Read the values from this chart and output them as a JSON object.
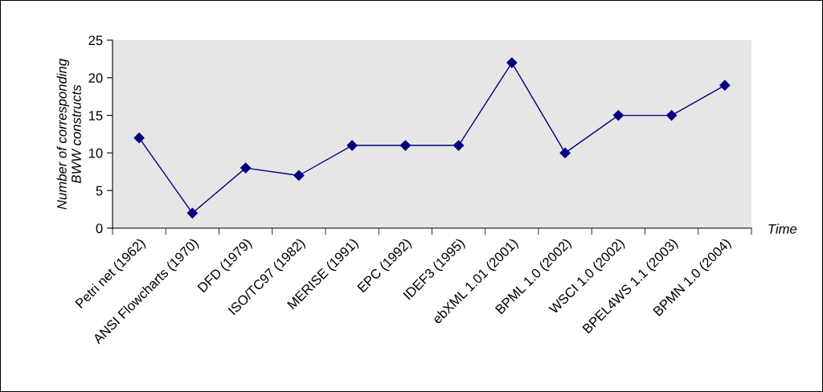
{
  "chart_data": {
    "type": "line",
    "categories": [
      "Petri net (1962)",
      "ANSI Flowcharts (1970)",
      "DFD (1979)",
      "ISO/TC97 (1982)",
      "MERISE (1991)",
      "EPC (1992)",
      "IDEF3 (1995)",
      "ebXML 1.01 (2001)",
      "BPML 1.0 (2002)",
      "WSCI 1.0 (2002)",
      "BPEL4WS 1.1 (2003)",
      "BPMN 1.0 (2004)"
    ],
    "series": [
      {
        "color": "#000080",
        "values": [
          12,
          2,
          8,
          7,
          11,
          11,
          11,
          22,
          10,
          15,
          15,
          19
        ]
      }
    ],
    "xlabel": "Time",
    "ylabel": "Number of corresponding\nBWW constructs",
    "ylim": [
      0,
      25
    ],
    "yticks": [
      0,
      5,
      10,
      15,
      20,
      25
    ],
    "grid": false,
    "legend": false,
    "marker": "diamond",
    "line_style": "solid"
  }
}
